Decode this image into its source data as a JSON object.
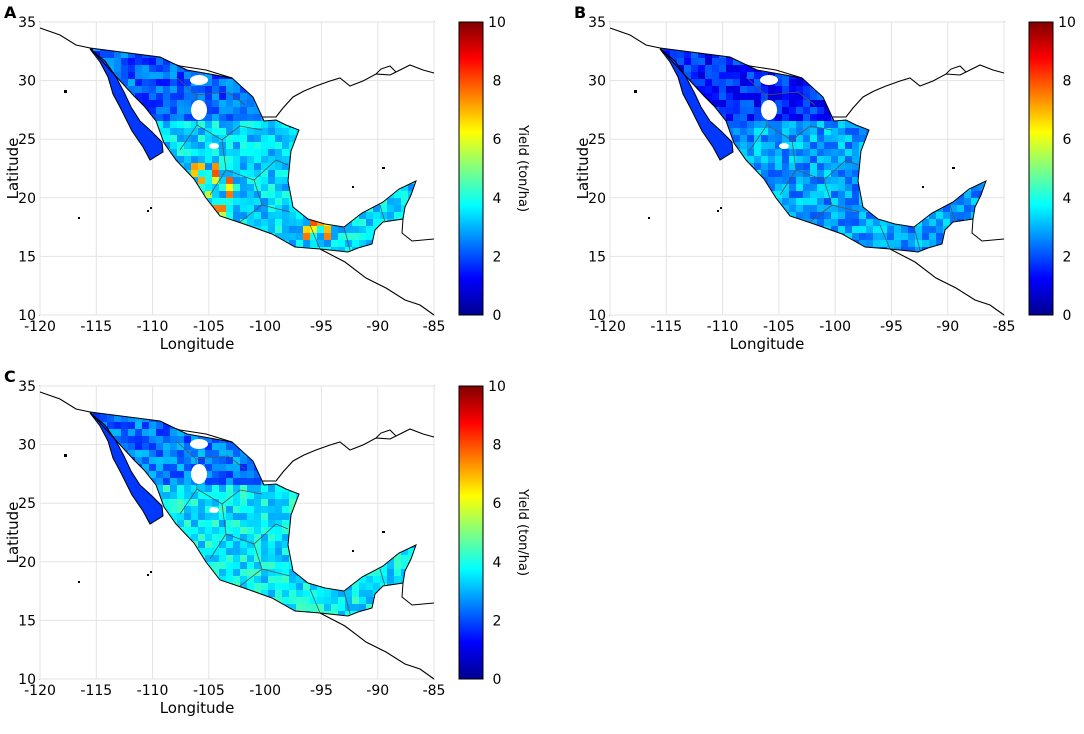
{
  "panels": [
    {
      "letter": "A",
      "yield_level": 0.34
    },
    {
      "letter": "B",
      "yield_level": 0.28
    },
    {
      "letter": "C",
      "yield_level": 0.36
    }
  ],
  "axes": {
    "xlabel": "Longitude",
    "ylabel": "Latitude",
    "xlim": [
      -120,
      -85
    ],
    "ylim": [
      10,
      35
    ],
    "xticks": [
      "-120",
      "-115",
      "-110",
      "-105",
      "-100",
      "-95",
      "-90",
      "-85"
    ],
    "yticks": [
      "10",
      "15",
      "20",
      "25",
      "30",
      "35"
    ]
  },
  "colorbar": {
    "label": "Yield (ton/ha)",
    "range": [
      0,
      10
    ],
    "ticks": [
      "0",
      "2",
      "4",
      "6",
      "8",
      "10"
    ],
    "colormap": "jet"
  },
  "colors": {
    "coastline": "#000000",
    "border": "#555555",
    "grid": "#e3e3e3",
    "frame": "#000000"
  }
}
